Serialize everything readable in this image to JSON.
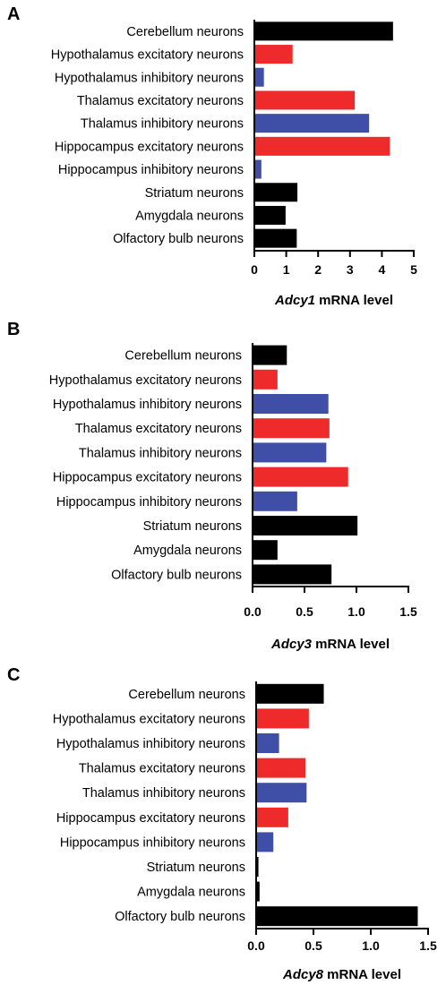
{
  "colors": {
    "black": "#000000",
    "red": "#ee2a2a",
    "blue": "#3f4fa8"
  },
  "chart_data": [
    {
      "panel": "A",
      "type": "bar",
      "orientation": "horizontal",
      "categories": [
        "Cerebellum neurons",
        "Hypothalamus excitatory neurons",
        "Hypothalamus inhibitory neurons",
        "Thalamus excitatory neurons",
        "Thalamus inhibitory neurons",
        "Hippocampus excitatory neurons",
        "Hippocampus inhibitory neurons",
        "Striatum neurons",
        "Amygdala neurons",
        "Olfactory bulb neurons"
      ],
      "values": [
        4.35,
        1.2,
        0.3,
        3.15,
        3.6,
        4.25,
        0.22,
        1.35,
        0.98,
        1.33
      ],
      "bar_colors": [
        "black",
        "red",
        "blue",
        "red",
        "blue",
        "red",
        "blue",
        "black",
        "black",
        "black"
      ],
      "xticks": [
        "0",
        "1",
        "2",
        "3",
        "4",
        "5"
      ],
      "xlim": [
        0,
        5
      ],
      "xlabel_gene": "Adcy1",
      "xlabel_rest": " mRNA level"
    },
    {
      "panel": "B",
      "type": "bar",
      "orientation": "horizontal",
      "categories": [
        "Cerebellum neurons",
        "Hypothalamus excitatory neurons",
        "Hypothalamus inhibitory neurons",
        "Thalamus excitatory neurons",
        "Thalamus inhibitory neurons",
        "Hippocampus excitatory neurons",
        "Hippocampus inhibitory neurons",
        "Striatum neurons",
        "Amygdala neurons",
        "Olfactory bulb neurons"
      ],
      "values": [
        0.33,
        0.24,
        0.73,
        0.74,
        0.71,
        0.92,
        0.43,
        1.01,
        0.24,
        0.76
      ],
      "bar_colors": [
        "black",
        "red",
        "blue",
        "red",
        "blue",
        "red",
        "blue",
        "black",
        "black",
        "black"
      ],
      "xticks": [
        "0.0",
        "0.5",
        "1.0",
        "1.5"
      ],
      "xlim": [
        0,
        1.5
      ],
      "xlabel_gene": "Adcy3",
      "xlabel_rest": " mRNA level"
    },
    {
      "panel": "C",
      "type": "bar",
      "orientation": "horizontal",
      "categories": [
        "Cerebellum neurons",
        "Hypothalamus excitatory neurons",
        "Hypothalamus inhibitory neurons",
        "Thalamus excitatory neurons",
        "Thalamus inhibitory neurons",
        "Hippocampus excitatory neurons",
        "Hippocampus inhibitory neurons",
        "Striatum neurons",
        "Amygdala neurons",
        "Olfactory bulb neurons"
      ],
      "values": [
        0.59,
        0.46,
        0.2,
        0.43,
        0.44,
        0.28,
        0.15,
        0.02,
        0.03,
        1.41
      ],
      "bar_colors": [
        "black",
        "red",
        "blue",
        "red",
        "blue",
        "red",
        "blue",
        "black",
        "black",
        "black"
      ],
      "xticks": [
        "0.0",
        "0.5",
        "1.0",
        "1.5"
      ],
      "xlim": [
        0,
        1.5
      ],
      "xlabel_gene": "Adcy8",
      "xlabel_rest": " mRNA level"
    }
  ]
}
